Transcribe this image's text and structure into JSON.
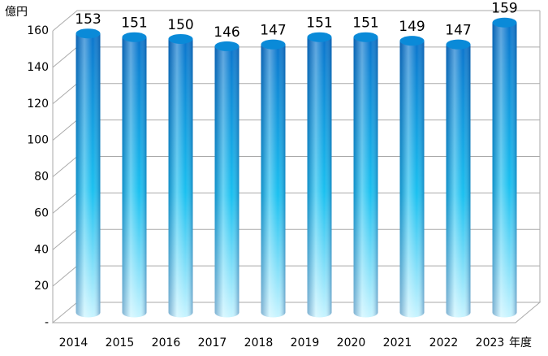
{
  "chart_data": {
    "type": "bar",
    "y_unit_label": "億円",
    "x_unit_label": "年度",
    "categories": [
      "2014",
      "2015",
      "2016",
      "2017",
      "2018",
      "2019",
      "2020",
      "2021",
      "2022",
      "2023"
    ],
    "values": [
      153,
      151,
      150,
      146,
      147,
      151,
      151,
      149,
      147,
      159
    ],
    "color": "#0a8ad8",
    "ylim": [
      0,
      160
    ],
    "yticks": [
      {
        "value": 0,
        "label": "-"
      },
      20,
      40,
      60,
      80,
      100,
      120,
      140,
      160
    ],
    "grid": true
  }
}
